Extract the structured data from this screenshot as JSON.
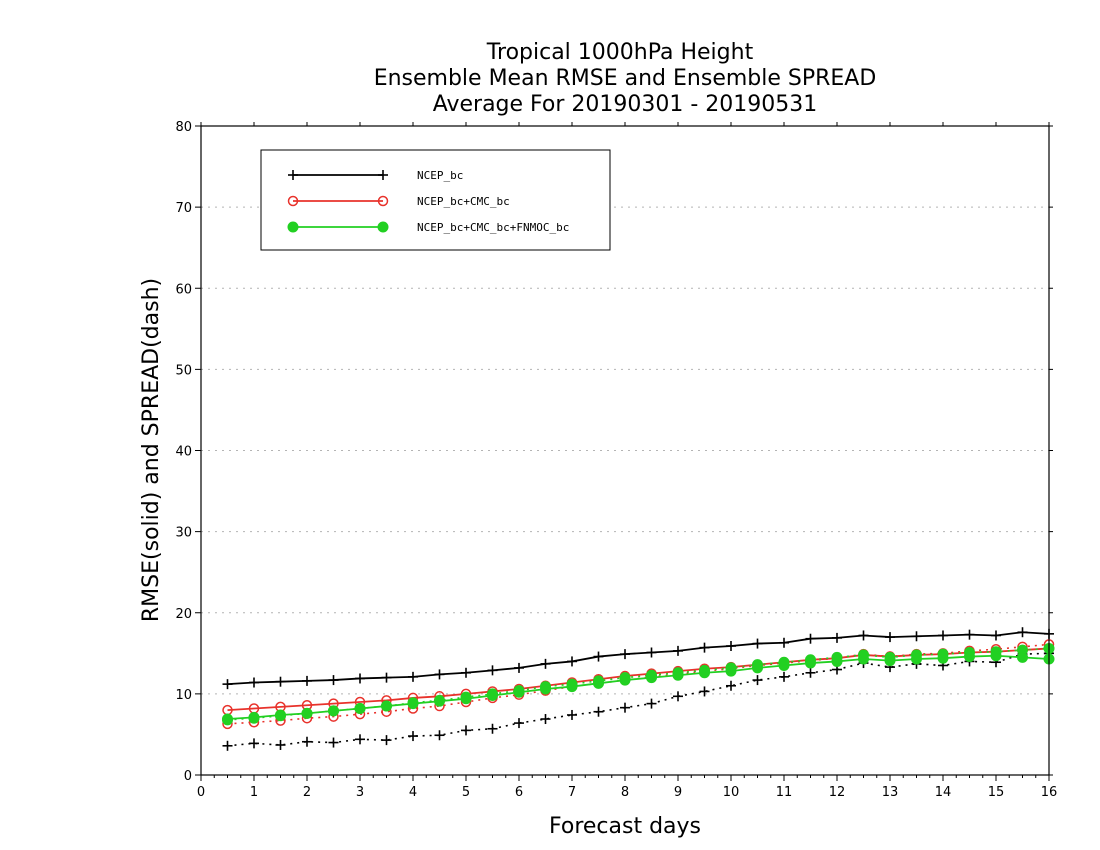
{
  "chart_data": {
    "type": "line",
    "title": [
      "Tropical 1000hPa Height",
      "Ensemble Mean RMSE and Ensemble SPREAD",
      "Average For 20190301 - 20190531"
    ],
    "xlabel": "Forecast days",
    "ylabel": "RMSE(solid) and SPREAD(dash)",
    "xlim": [
      0,
      16
    ],
    "ylim": [
      0,
      80
    ],
    "xticks": [
      "0",
      "1",
      "2",
      "3",
      "4",
      "5",
      "6",
      "7",
      "8",
      "9",
      "10",
      "11",
      "12",
      "13",
      "14",
      "15",
      "16"
    ],
    "yticks": [
      "0",
      "10",
      "20",
      "30",
      "40",
      "50",
      "60",
      "70",
      "80"
    ],
    "grid": "horizontal dotted",
    "legend_position": "top-left",
    "x": [
      0.5,
      1,
      1.5,
      2,
      2.5,
      3,
      3.5,
      4,
      4.5,
      5,
      5.5,
      6,
      6.5,
      7,
      7.5,
      8,
      8.5,
      9,
      9.5,
      10,
      10.5,
      11,
      11.5,
      12,
      12.5,
      13,
      13.5,
      14,
      14.5,
      15,
      15.5,
      16
    ],
    "series": [
      {
        "name": "NCEP_bc",
        "color": "#000000",
        "marker": "plus",
        "rmse": [
          11.2,
          11.4,
          11.5,
          11.6,
          11.7,
          11.9,
          12.0,
          12.1,
          12.4,
          12.6,
          12.9,
          13.2,
          13.7,
          14.0,
          14.6,
          14.9,
          15.1,
          15.3,
          15.7,
          15.9,
          16.2,
          16.3,
          16.8,
          16.9,
          17.2,
          17.0,
          17.1,
          17.2,
          17.3,
          17.2,
          17.6,
          17.4
        ],
        "spread": [
          3.6,
          3.9,
          3.7,
          4.1,
          4.0,
          4.4,
          4.3,
          4.8,
          4.9,
          5.5,
          5.7,
          6.4,
          6.9,
          7.4,
          7.8,
          8.3,
          8.8,
          9.7,
          10.3,
          11.0,
          11.7,
          12.1,
          12.6,
          13.0,
          13.8,
          13.3,
          13.7,
          13.5,
          14.0,
          13.9,
          14.9,
          15.0
        ]
      },
      {
        "name": "NCEP_bc+CMC_bc",
        "color": "#e8322b",
        "marker": "open-circle",
        "rmse": [
          8.0,
          8.2,
          8.4,
          8.6,
          8.8,
          9.0,
          9.2,
          9.5,
          9.7,
          10.0,
          10.3,
          10.6,
          11.0,
          11.4,
          11.8,
          12.2,
          12.5,
          12.8,
          13.1,
          13.3,
          13.6,
          13.9,
          14.2,
          14.4,
          14.8,
          14.6,
          14.8,
          14.9,
          15.1,
          15.2,
          15.4,
          15.6
        ],
        "spread": [
          6.3,
          6.5,
          6.7,
          7.0,
          7.2,
          7.5,
          7.8,
          8.2,
          8.5,
          9.0,
          9.5,
          9.9,
          10.4,
          10.9,
          11.3,
          11.7,
          12.1,
          12.4,
          12.8,
          13.1,
          13.5,
          13.8,
          14.1,
          14.4,
          14.9,
          14.6,
          14.9,
          15.0,
          15.3,
          15.5,
          15.8,
          16.1
        ]
      },
      {
        "name": "NCEP_bc+CMC_bc+FNMOC_bc",
        "color": "#22d022",
        "marker": "filled-circle",
        "rmse": [
          6.9,
          7.1,
          7.4,
          7.6,
          7.9,
          8.2,
          8.5,
          8.8,
          9.1,
          9.4,
          9.8,
          10.2,
          10.6,
          10.9,
          11.3,
          11.7,
          12.0,
          12.3,
          12.6,
          12.8,
          13.2,
          13.5,
          13.8,
          14.0,
          14.3,
          14.1,
          14.3,
          14.4,
          14.6,
          14.7,
          14.5,
          14.3
        ],
        "spread": [
          6.8,
          7.0,
          7.3,
          7.6,
          7.9,
          8.2,
          8.5,
          8.9,
          9.2,
          9.6,
          10.0,
          10.4,
          10.9,
          11.2,
          11.6,
          12.0,
          12.3,
          12.6,
          12.9,
          13.2,
          13.6,
          13.9,
          14.2,
          14.5,
          14.8,
          14.5,
          14.8,
          14.9,
          15.1,
          15.2,
          15.4,
          15.6
        ]
      }
    ]
  }
}
